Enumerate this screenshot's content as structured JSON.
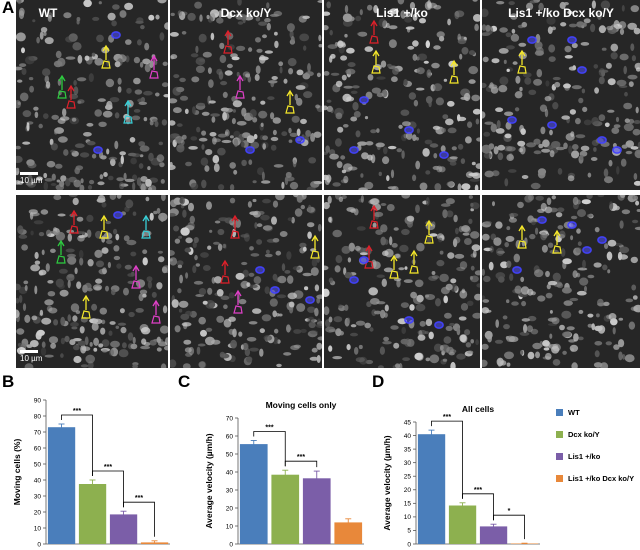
{
  "panel_letters": {
    "a": "A",
    "b": "B",
    "c": "C",
    "d": "D"
  },
  "micrographs": {
    "column_labels": [
      "WT",
      "Dcx ko/Y",
      "Lis1 +/ko",
      "Lis1 +/ko Dcx ko/Y"
    ],
    "scale_bar_label": "10 µm"
  },
  "colors": {
    "wt": "#4a7ebb",
    "dcx": "#8db04f",
    "lis1": "#7b5ea8",
    "double": "#e8883a"
  },
  "legend": [
    "WT",
    "Dcx ko/Y",
    "Lis1 +/ko",
    "Lis1 +/ko Dcx ko/Y"
  ],
  "chart_data": [
    {
      "type": "bar",
      "panel": "B",
      "title": "",
      "xlabel": "",
      "ylabel": "Moving cells (%)",
      "ylim": [
        0,
        90
      ],
      "yticks": [
        "0",
        "10",
        "20",
        "30",
        "40",
        "50",
        "60",
        "70",
        "80",
        "90"
      ],
      "categories": [
        "WT",
        "Dcx ko/Y",
        "Lis1 +/ko",
        "Lis1 +/ko Dcx ko/Y"
      ],
      "values": [
        73,
        37.5,
        18.5,
        1
      ],
      "errors": [
        2,
        2.5,
        2,
        1
      ],
      "significance": [
        "***",
        "***",
        "***"
      ]
    },
    {
      "type": "bar",
      "panel": "C",
      "title": "Moving cells only",
      "xlabel": "",
      "ylabel": "Average velocity (µm/h)",
      "ylim": [
        0,
        70
      ],
      "yticks": [
        "0",
        "10",
        "20",
        "30",
        "40",
        "50",
        "60",
        "70"
      ],
      "categories": [
        "WT",
        "Dcx ko/Y",
        "Lis1 +/ko",
        "Lis1 +/ko Dcx ko/Y"
      ],
      "values": [
        55.5,
        38.5,
        36.5,
        12
      ],
      "errors": [
        2,
        2.5,
        4,
        2
      ],
      "significance": [
        "***",
        "***"
      ]
    },
    {
      "type": "bar",
      "panel": "D",
      "title": "All cells",
      "xlabel": "",
      "ylabel": "Average velocity (µm/h)",
      "ylim": [
        0,
        45
      ],
      "yticks": [
        "0",
        "5",
        "10",
        "15",
        "20",
        "25",
        "30",
        "35",
        "40",
        "45"
      ],
      "categories": [
        "WT",
        "Dcx ko/Y",
        "Lis1 +/ko",
        "Lis1 +/ko Dcx ko/Y"
      ],
      "values": [
        40.5,
        14.2,
        6.5,
        0.2
      ],
      "errors": [
        1.5,
        1,
        0.8,
        0.1
      ],
      "significance": [
        "***",
        "***",
        "*"
      ]
    }
  ]
}
